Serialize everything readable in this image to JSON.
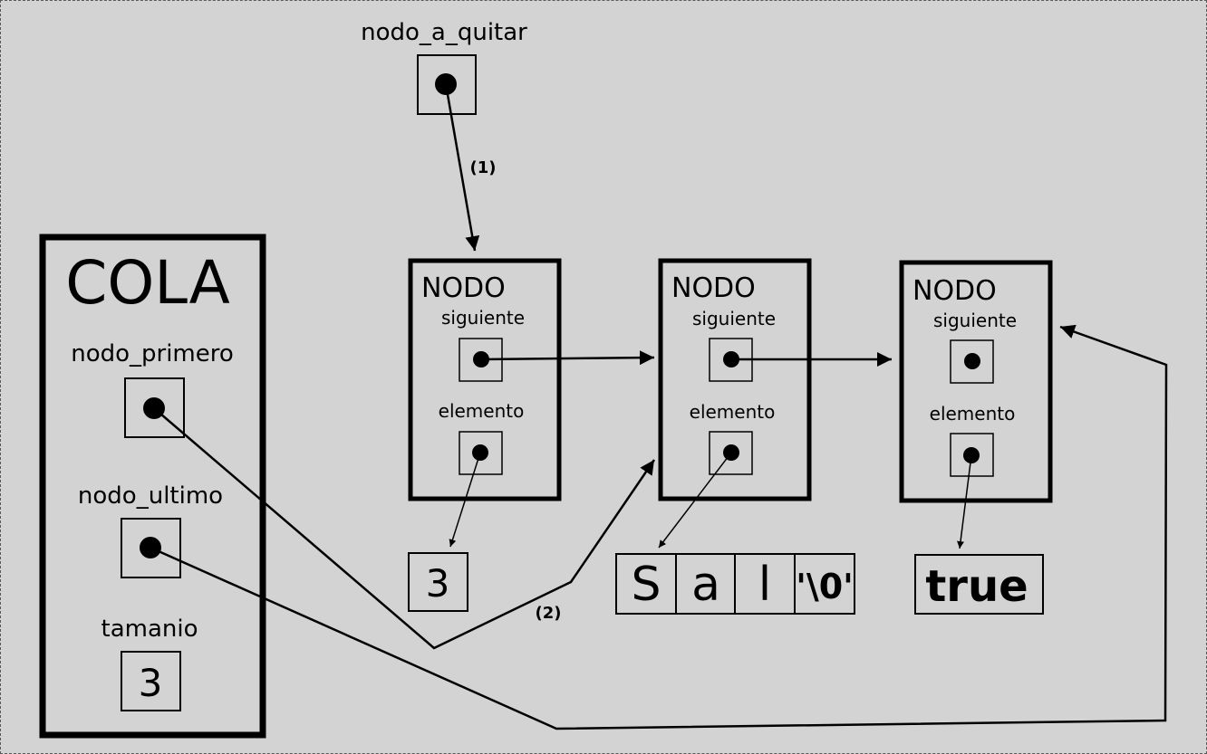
{
  "pointer": {
    "label": "nodo_a_quitar"
  },
  "steps": {
    "step1": "(1)",
    "step2": "(2)"
  },
  "cola": {
    "title": "COLA",
    "primero_label": "nodo_primero",
    "ultimo_label": "nodo_ultimo",
    "tamanio_label": "tamanio",
    "tamanio_value": "3"
  },
  "nodes": [
    {
      "title": "NODO",
      "siguiente_label": "siguiente",
      "elemento_label": "elemento"
    },
    {
      "title": "NODO",
      "siguiente_label": "siguiente",
      "elemento_label": "elemento"
    },
    {
      "title": "NODO",
      "siguiente_label": "siguiente",
      "elemento_label": "elemento"
    }
  ],
  "values": {
    "number": "3",
    "chars": [
      "S",
      "a",
      "l",
      "'\\0'"
    ],
    "boolean": "true"
  }
}
